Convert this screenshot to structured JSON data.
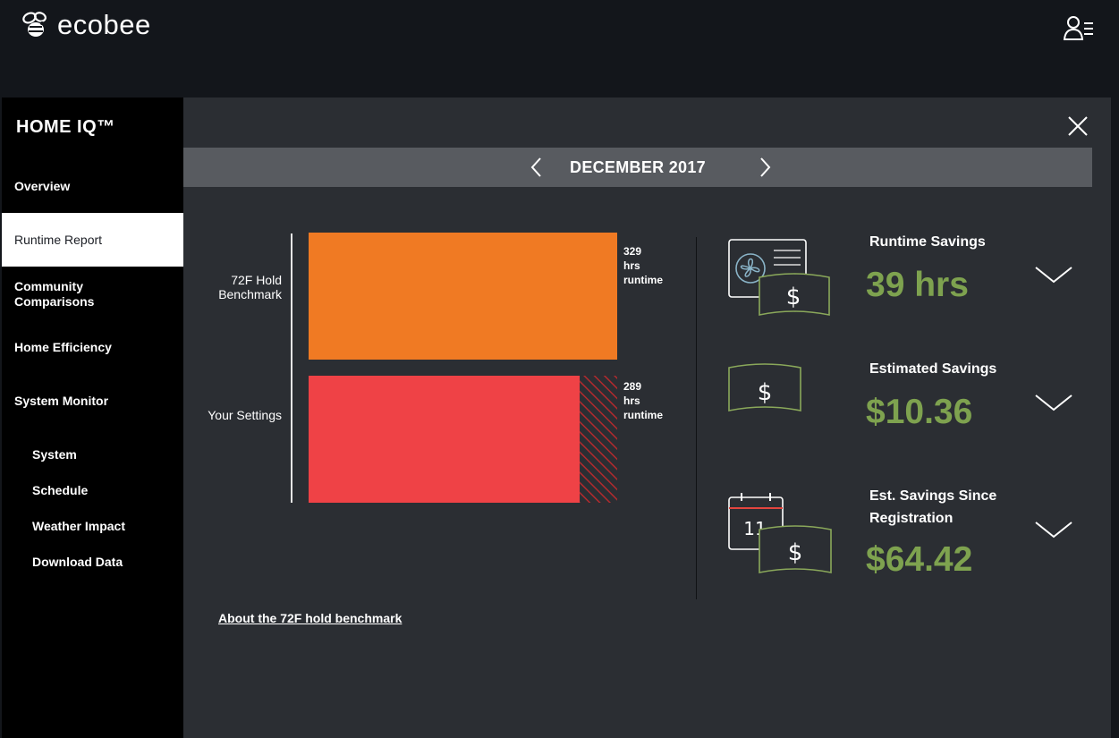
{
  "brand": {
    "name": "ecobee"
  },
  "header": {
    "user_icon": "user-list-icon"
  },
  "sidebar": {
    "title": "HOME IQ™",
    "items": [
      {
        "label": "Overview",
        "active": false
      },
      {
        "label": "Runtime Report",
        "active": true
      },
      {
        "label": "Community Comparisons",
        "active": false
      },
      {
        "label": "Home Efficiency",
        "active": false
      },
      {
        "label": "System Monitor",
        "active": false
      }
    ],
    "subitems": [
      {
        "label": "System"
      },
      {
        "label": "Schedule"
      },
      {
        "label": "Weather Impact"
      },
      {
        "label": "Download Data"
      }
    ]
  },
  "report": {
    "month": "DECEMBER 2017",
    "benchmark_link": "About the 72F hold benchmark"
  },
  "chart_data": {
    "type": "bar",
    "orientation": "horizontal",
    "categories": [
      "72F Hold Benchmark",
      "Your Settings"
    ],
    "values": [
      329,
      289
    ],
    "value_labels": [
      [
        "329",
        "hrs",
        "runtime"
      ],
      [
        "289",
        "hrs",
        "runtime"
      ]
    ],
    "xlim": [
      0,
      329
    ],
    "colors": [
      "#f07a23",
      "#ef4246"
    ],
    "savings_hatch_color": "#b22a2e",
    "grid": false
  },
  "savings": [
    {
      "title": "Runtime Savings",
      "value": "39 hrs",
      "icon": "fan-money-icon"
    },
    {
      "title": "Estimated Savings",
      "value": "$10.36",
      "icon": "money-icon"
    },
    {
      "title": "Est. Savings Since Registration",
      "value": "$64.42",
      "icon": "calendar-money-icon",
      "calendar_day": "11"
    }
  ],
  "colors": {
    "accent_green": "#7ea24f",
    "panel": "#2b2e33",
    "month_bar": "#585b60"
  }
}
